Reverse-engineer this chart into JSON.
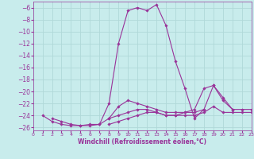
{
  "xlabel": "Windchill (Refroidissement éolien,°C)",
  "background_color": "#c8ecec",
  "grid_color": "#b0d8d8",
  "line_color": "#993399",
  "xlim": [
    0,
    23
  ],
  "ylim": [
    -26.5,
    -5.0
  ],
  "xticks": [
    0,
    1,
    2,
    3,
    4,
    5,
    6,
    7,
    8,
    9,
    10,
    11,
    12,
    13,
    14,
    15,
    16,
    17,
    18,
    19,
    20,
    21,
    22,
    23
  ],
  "yticks": [
    -6,
    -8,
    -10,
    -12,
    -14,
    -16,
    -18,
    -20,
    -22,
    -24,
    -26
  ],
  "series": [
    [
      null,
      -24.0,
      -25.0,
      -25.5,
      -25.7,
      -25.7,
      -25.5,
      -25.5,
      -22.0,
      -12.0,
      -6.5,
      -6.0,
      -6.5,
      -5.5,
      -9.0,
      -15.0,
      -19.5,
      -24.5,
      -23.0,
      null,
      null,
      null,
      null,
      null
    ],
    [
      null,
      null,
      -24.5,
      -25.0,
      -25.5,
      -25.7,
      -25.7,
      -25.5,
      -24.5,
      -22.5,
      -21.5,
      -22.0,
      -22.5,
      -23.0,
      -23.5,
      -23.5,
      -23.5,
      -23.0,
      -19.5,
      -19.0,
      -21.0,
      -23.0,
      null,
      null
    ],
    [
      null,
      null,
      null,
      null,
      null,
      null,
      null,
      null,
      -24.5,
      -24.0,
      -23.5,
      -23.0,
      -23.0,
      -23.5,
      -24.0,
      -24.0,
      -23.5,
      -23.5,
      -23.0,
      -19.0,
      -21.5,
      -23.0,
      -23.0,
      -23.0
    ],
    [
      null,
      null,
      null,
      null,
      null,
      null,
      null,
      null,
      -25.5,
      -25.0,
      -24.5,
      -24.0,
      -23.5,
      -23.5,
      -24.0,
      -24.0,
      -24.0,
      -24.0,
      -23.5,
      -22.5,
      -23.5,
      -23.5,
      -23.5,
      -23.5
    ]
  ]
}
